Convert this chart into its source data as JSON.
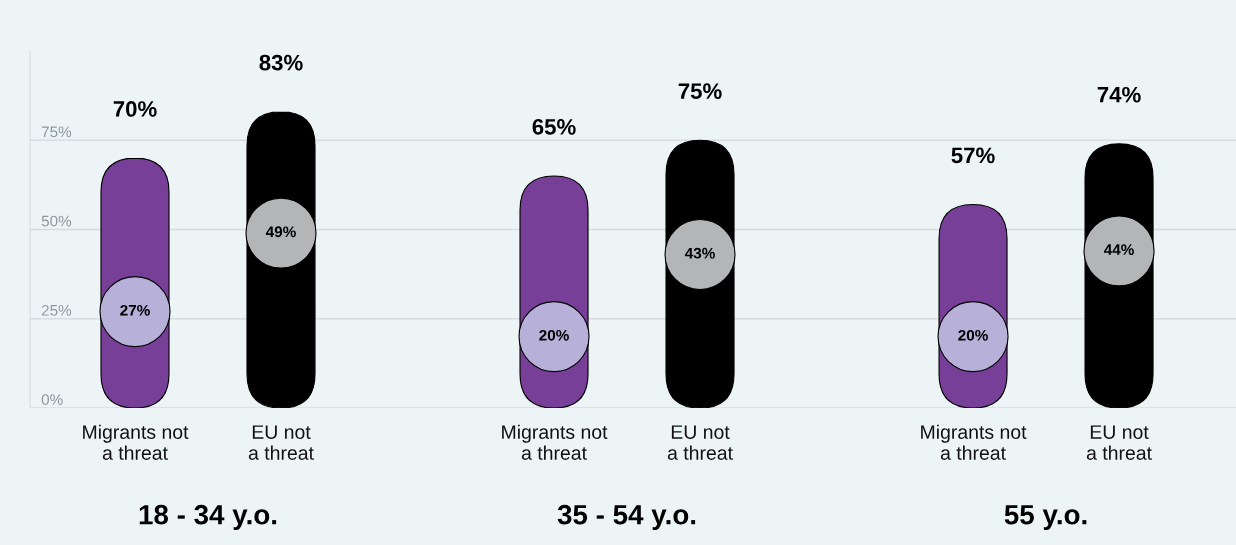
{
  "chart_data": {
    "type": "bar",
    "categories": [
      "Migrants not\na threat",
      "EU not\na threat",
      "Migrants not\na threat",
      "EU not\na threat",
      "Migrants not\na threat",
      "EU not\na threat"
    ],
    "series": [
      {
        "colors": [
          "#773f97",
          "#000000",
          "#773f97",
          "#000000",
          "#773f97",
          "#000000"
        ],
        "values": [
          70,
          83,
          65,
          75,
          57,
          74
        ],
        "value_labels": [
          "70%",
          "83%",
          "65%",
          "75%",
          "57%",
          "74%"
        ]
      },
      {
        "type": "scatter",
        "colors": [
          "#b7b1da",
          "#b3b5b7",
          "#b7b1da",
          "#b3b5b7",
          "#b7b1da",
          "#b3b5b7"
        ],
        "values": [
          27,
          49,
          20,
          43,
          20,
          44
        ],
        "value_labels": [
          "27%",
          "49%",
          "20%",
          "43%",
          "20%",
          "44%"
        ]
      }
    ],
    "annotations": [
      "18 - 34 y.o.",
      "35 - 54 y.o.",
      "55 y.o."
    ],
    "ylim": [
      0,
      100
    ],
    "yticks": [
      {
        "value": 0,
        "label": "0%"
      },
      {
        "value": 25,
        "label": "25%"
      },
      {
        "value": 50,
        "label": "50%"
      },
      {
        "value": 75,
        "label": "75%"
      }
    ],
    "grid": "y"
  }
}
